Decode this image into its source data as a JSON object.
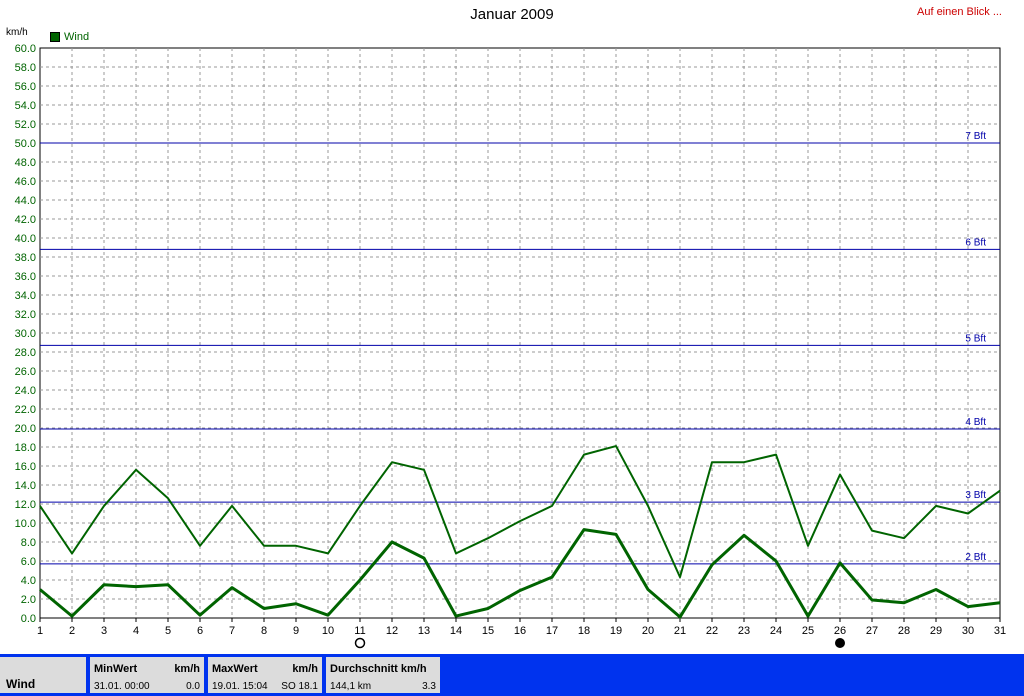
{
  "header": {
    "title": "Januar 2009",
    "link_label": "Auf einen Blick ...",
    "unit_label": "km/h",
    "legend_label": "Wind"
  },
  "chart_data": {
    "type": "line",
    "title": "Januar 2009",
    "ylabel": "km/h",
    "ylim": [
      0,
      60
    ],
    "ytick_step": 2,
    "x": [
      1,
      2,
      3,
      4,
      5,
      6,
      7,
      8,
      9,
      10,
      11,
      12,
      13,
      14,
      15,
      16,
      17,
      18,
      19,
      20,
      21,
      22,
      23,
      24,
      25,
      26,
      27,
      28,
      29,
      30,
      31
    ],
    "series": [
      {
        "name": "Wind",
        "role": "max",
        "values": [
          11.8,
          6.8,
          11.8,
          15.6,
          12.6,
          7.6,
          11.8,
          7.6,
          7.6,
          6.8,
          11.8,
          16.4,
          15.6,
          6.8,
          8.4,
          10.2,
          11.8,
          17.2,
          18.1,
          11.8,
          4.3,
          16.4,
          16.4,
          17.2,
          7.6,
          15.1,
          9.2,
          8.4,
          11.8,
          11.0,
          13.4
        ]
      },
      {
        "name": "Wind",
        "role": "mean",
        "values": [
          3.0,
          0.2,
          3.5,
          3.3,
          3.5,
          0.3,
          3.2,
          1.0,
          1.5,
          0.3,
          4.0,
          8.0,
          6.3,
          0.2,
          1.0,
          2.9,
          4.3,
          9.3,
          8.8,
          3.0,
          0.1,
          5.6,
          8.7,
          6.0,
          0.2,
          5.8,
          1.9,
          1.6,
          3.0,
          1.2,
          1.6
        ]
      }
    ],
    "beaufort_lines": [
      {
        "label": "2 Bft",
        "value": 5.7
      },
      {
        "label": "3 Bft",
        "value": 12.2
      },
      {
        "label": "4 Bft",
        "value": 19.9
      },
      {
        "label": "5 Bft",
        "value": 28.7
      },
      {
        "label": "6 Bft",
        "value": 38.8
      },
      {
        "label": "7 Bft",
        "value": 50.0
      }
    ],
    "moon_markers": [
      {
        "day": 11,
        "phase": "full-moon"
      },
      {
        "day": 26,
        "phase": "new-moon"
      }
    ],
    "grid": true,
    "line_color": "#006400",
    "bft_color": "#0000aa",
    "axis_label_color": "#006400"
  },
  "footer": {
    "series_name": "Wind",
    "min": {
      "header": "MinWert",
      "unit": "km/h",
      "date": "31.01.  00:00",
      "value": "0.0"
    },
    "max": {
      "header": "MaxWert",
      "unit": "km/h",
      "date": "19.01.  15:04",
      "extra": "SO 18.1"
    },
    "avg": {
      "header": "Durchschnitt km/h",
      "distance": "144,1 km",
      "value": "3.3"
    }
  }
}
